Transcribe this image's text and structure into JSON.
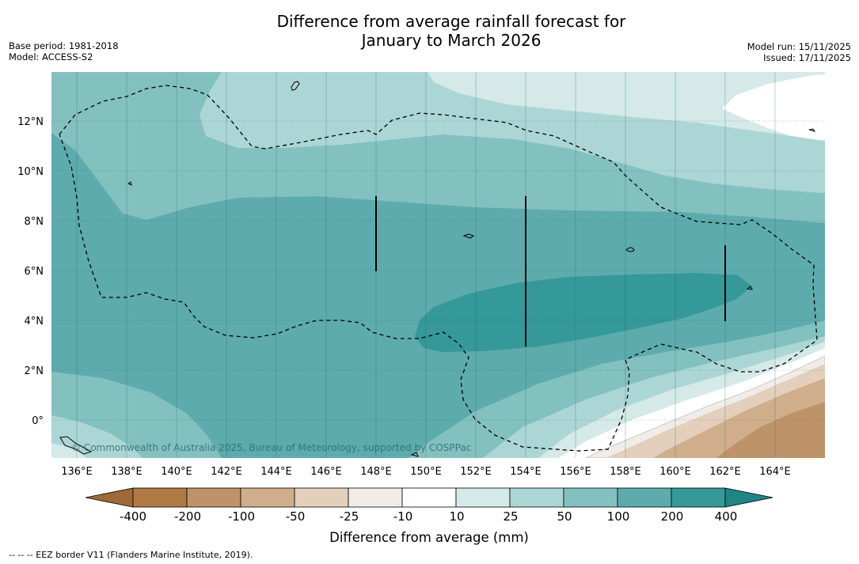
{
  "header": {
    "title_line1": "Difference from average rainfall forecast for",
    "title_line2": "January to March 2026",
    "base_period": "Base period: 1981-2018",
    "model": "Model: ACCESS-S2",
    "model_run": "Model run: 15/11/2025",
    "issued": "Issued: 17/11/2025"
  },
  "map": {
    "lat_labels": [
      "12°N",
      "10°N",
      "8°N",
      "6°N",
      "4°N",
      "2°N",
      "0°"
    ],
    "lon_labels": [
      "136°E",
      "138°E",
      "140°E",
      "142°E",
      "144°E",
      "146°E",
      "148°E",
      "150°E",
      "152°E",
      "154°E",
      "156°E",
      "158°E",
      "160°E",
      "162°E",
      "164°E"
    ],
    "copyright": "© Commonwealth of Australia 2025, Bureau of Meteorology, supported by COSPPac"
  },
  "colorbar": {
    "ticks": [
      "-400",
      "-200",
      "-100",
      "-50",
      "-25",
      "-10",
      "10",
      "25",
      "50",
      "100",
      "200",
      "400"
    ],
    "colors": [
      "#9e6a37",
      "#b07a44",
      "#bf936a",
      "#d0ae8c",
      "#e3cfbb",
      "#f2ece8",
      "#ffffff",
      "#d4e9e8",
      "#acd6d5",
      "#83c1c0",
      "#5dabad",
      "#349998",
      "#1f8584"
    ],
    "label": "Difference from average (mm)"
  },
  "footer": {
    "eez_note": "--  --  -- EEZ border V11 (Flanders Marine Institute, 2019)."
  }
}
